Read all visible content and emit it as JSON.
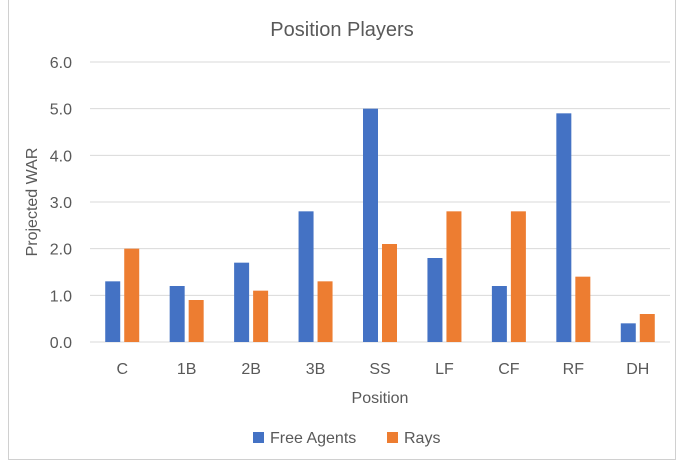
{
  "chart_data": {
    "type": "bar",
    "title": "Position Players",
    "xlabel": "Position",
    "ylabel": "Projected WAR",
    "categories": [
      "C",
      "1B",
      "2B",
      "3B",
      "SS",
      "LF",
      "CF",
      "RF",
      "DH"
    ],
    "series": [
      {
        "name": "Free Agents",
        "color": "#4472C4",
        "values": [
          1.3,
          1.2,
          1.7,
          2.8,
          5.0,
          1.8,
          1.2,
          4.9,
          0.4
        ]
      },
      {
        "name": "Rays",
        "color": "#ED7D31",
        "values": [
          2.0,
          0.9,
          1.1,
          1.3,
          2.1,
          2.8,
          2.8,
          1.4,
          0.6
        ]
      }
    ],
    "ylim": [
      0,
      6
    ],
    "yticks": [
      "0.0",
      "1.0",
      "2.0",
      "3.0",
      "4.0",
      "5.0",
      "6.0"
    ],
    "grid": true,
    "legend_position": "bottom",
    "gridline_color": "#d9d9d9"
  }
}
